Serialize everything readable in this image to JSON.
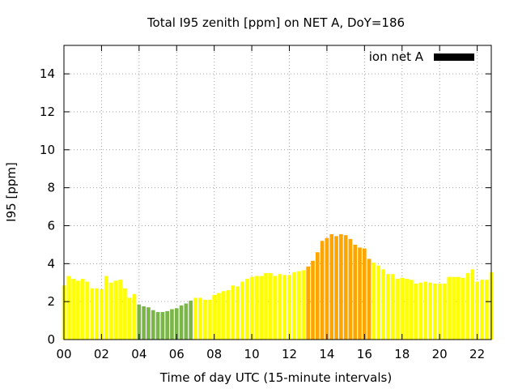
{
  "chart_data": {
    "type": "bar",
    "title": "Total I95 zenith [ppm] on NET A, DoY=186",
    "xlabel": "Time of day UTC (15-minute intervals)",
    "ylabel": "I95 [ppm]",
    "xlim": [
      0,
      22.75
    ],
    "ylim": [
      0,
      15.5
    ],
    "xticks": [
      "00",
      "02",
      "04",
      "06",
      "08",
      "10",
      "12",
      "14",
      "16",
      "18",
      "20",
      "22"
    ],
    "yticks": [
      "0",
      "2",
      "4",
      "6",
      "8",
      "10",
      "12",
      "14"
    ],
    "grid": true,
    "legend": {
      "label": "ion net A",
      "color": "#000000",
      "placement": "top-right"
    },
    "series": [
      {
        "name": "ion net A",
        "interval_hours": 0.25,
        "values": [
          2.85,
          3.35,
          3.2,
          3.1,
          3.2,
          3.05,
          2.7,
          2.7,
          2.65,
          3.35,
          3.0,
          3.1,
          3.15,
          2.7,
          2.2,
          2.4,
          1.85,
          1.75,
          1.7,
          1.55,
          1.45,
          1.45,
          1.5,
          1.6,
          1.65,
          1.8,
          1.9,
          2.05,
          2.2,
          2.2,
          2.1,
          2.1,
          2.35,
          2.45,
          2.55,
          2.6,
          2.85,
          2.8,
          3.05,
          3.2,
          3.3,
          3.35,
          3.35,
          3.5,
          3.5,
          3.35,
          3.45,
          3.4,
          3.4,
          3.55,
          3.6,
          3.65,
          3.85,
          4.15,
          4.6,
          5.2,
          5.35,
          5.55,
          5.45,
          5.55,
          5.5,
          5.3,
          5.0,
          4.85,
          4.8,
          4.25,
          4.05,
          3.9,
          3.7,
          3.45,
          3.45,
          3.2,
          3.25,
          3.2,
          3.15,
          2.95,
          3.0,
          3.05,
          3.0,
          2.95,
          2.95,
          2.95,
          3.3,
          3.3,
          3.3,
          3.25,
          3.5,
          3.7,
          3.05,
          3.15,
          3.15,
          3.55
        ],
        "colors": [
          "#ffff00",
          "#ffff00",
          "#ffff00",
          "#ffff00",
          "#ffff00",
          "#ffff00",
          "#ffff00",
          "#ffff00",
          "#ffff00",
          "#ffff00",
          "#ffff00",
          "#ffff00",
          "#ffff00",
          "#ffff00",
          "#ffff00",
          "#ffff00",
          "#7ab648",
          "#7ab648",
          "#7ab648",
          "#7ab648",
          "#7ab648",
          "#7ab648",
          "#7ab648",
          "#7ab648",
          "#7ab648",
          "#7ab648",
          "#7ab648",
          "#7ab648",
          "#ffff00",
          "#ffff00",
          "#ffff00",
          "#ffff00",
          "#ffff00",
          "#ffff00",
          "#ffff00",
          "#ffff00",
          "#ffff00",
          "#ffff00",
          "#ffff00",
          "#ffff00",
          "#ffff00",
          "#ffff00",
          "#ffff00",
          "#ffff00",
          "#ffff00",
          "#ffff00",
          "#ffff00",
          "#ffff00",
          "#ffff00",
          "#ffff00",
          "#ffff00",
          "#ffff00",
          "#ffa500",
          "#ffa500",
          "#ffa500",
          "#ffa500",
          "#ffa500",
          "#ffa500",
          "#ffa500",
          "#ffa500",
          "#ffa500",
          "#ffa500",
          "#ffa500",
          "#ffa500",
          "#ffa500",
          "#ffa500",
          "#ffff00",
          "#ffff00",
          "#ffff00",
          "#ffff00",
          "#ffff00",
          "#ffff00",
          "#ffff00",
          "#ffff00",
          "#ffff00",
          "#ffff00",
          "#ffff00",
          "#ffff00",
          "#ffff00",
          "#ffff00",
          "#ffff00",
          "#ffff00",
          "#ffff00",
          "#ffff00",
          "#ffff00",
          "#ffff00",
          "#ffff00",
          "#ffff00",
          "#ffff00",
          "#ffff00",
          "#ffff00",
          "#ffff00"
        ]
      }
    ]
  }
}
